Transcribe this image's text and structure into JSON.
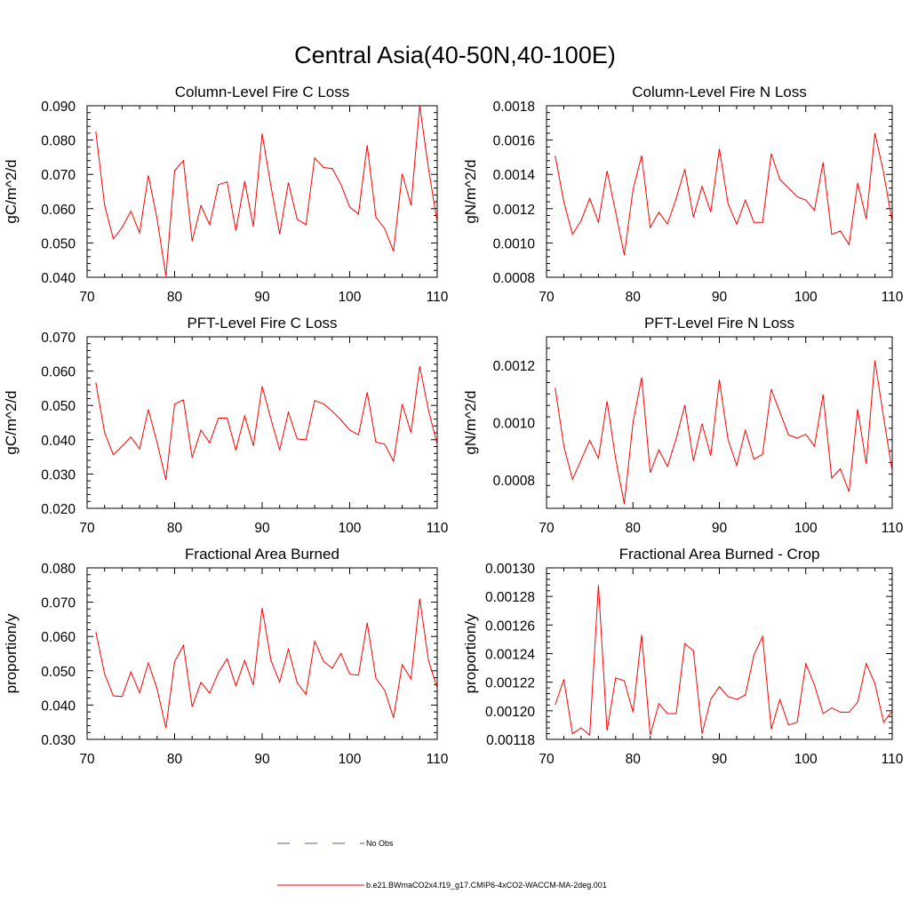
{
  "title": "Central Asia(40-50N,40-100E)",
  "chart_data": [
    {
      "type": "line",
      "title": "Column-Level Fire C Loss",
      "ylabel": "gC/m^2/d",
      "xlabel": "",
      "xlim": [
        70,
        110
      ],
      "ylim": [
        0.04,
        0.09
      ],
      "xticks": [
        "70",
        "80",
        "90",
        "100",
        "110"
      ],
      "yticks": [
        "0.040",
        "0.050",
        "0.060",
        "0.070",
        "0.080",
        "0.090"
      ],
      "x": [
        71,
        72,
        73,
        74,
        75,
        76,
        77,
        78,
        79,
        80,
        81,
        82,
        83,
        84,
        85,
        86,
        87,
        88,
        89,
        90,
        91,
        92,
        93,
        94,
        95,
        96,
        97,
        98,
        99,
        100,
        101,
        102,
        103,
        104,
        105,
        106,
        107,
        108,
        109,
        110
      ],
      "series": [
        {
          "name": "b.e21.BWmaCO2x4.f19_g17.CMIP6-4xCO2-WACCM-MA-2deg.001",
          "color": "#ff0000",
          "values": [
            0.0825,
            0.061,
            0.0512,
            0.0545,
            0.0593,
            0.0529,
            0.0697,
            0.057,
            0.0403,
            0.0711,
            0.074,
            0.0505,
            0.0609,
            0.0553,
            0.067,
            0.0678,
            0.0536,
            0.068,
            0.0548,
            0.0819,
            0.0665,
            0.0526,
            0.0676,
            0.0569,
            0.0553,
            0.0748,
            0.072,
            0.0717,
            0.0671,
            0.0605,
            0.0584,
            0.0785,
            0.0575,
            0.0542,
            0.0476,
            0.0702,
            0.061,
            0.09,
            0.0718,
            0.056
          ]
        }
      ]
    },
    {
      "type": "line",
      "title": "Column-Level Fire N Loss",
      "ylabel": "gN/m^2/d",
      "xlabel": "",
      "xlim": [
        70,
        110
      ],
      "ylim": [
        0.0008,
        0.0018
      ],
      "xticks": [
        "70",
        "80",
        "90",
        "100",
        "110"
      ],
      "yticks": [
        "0.0008",
        "0.0010",
        "0.0012",
        "0.0014",
        "0.0016",
        "0.0018"
      ],
      "x": [
        71,
        72,
        73,
        74,
        75,
        76,
        77,
        78,
        79,
        80,
        81,
        82,
        83,
        84,
        85,
        86,
        87,
        88,
        89,
        90,
        91,
        92,
        93,
        94,
        95,
        96,
        97,
        98,
        99,
        100,
        101,
        102,
        103,
        104,
        105,
        106,
        107,
        108,
        109,
        110
      ],
      "series": [
        {
          "name": "b.e21.BWmaCO2x4.f19_g17.CMIP6-4xCO2-WACCM-MA-2deg.001",
          "color": "#ff0000",
          "values": [
            0.00151,
            0.00124,
            0.00105,
            0.00113,
            0.00126,
            0.00112,
            0.00142,
            0.00118,
            0.00093,
            0.00131,
            0.00151,
            0.00109,
            0.00118,
            0.00111,
            0.00126,
            0.00143,
            0.00115,
            0.00133,
            0.00118,
            0.00155,
            0.00123,
            0.00111,
            0.00125,
            0.00112,
            0.00112,
            0.00152,
            0.00137,
            0.00132,
            0.00127,
            0.00125,
            0.00119,
            0.00147,
            0.00105,
            0.00107,
            0.00099,
            0.00135,
            0.00114,
            0.00164,
            0.00141,
            0.00112
          ]
        }
      ]
    },
    {
      "type": "line",
      "title": "PFT-Level Fire C Loss",
      "ylabel": "gC/m^2/d",
      "xlabel": "",
      "xlim": [
        70,
        110
      ],
      "ylim": [
        0.02,
        0.07
      ],
      "xticks": [
        "70",
        "80",
        "90",
        "100",
        "110"
      ],
      "yticks": [
        "0.020",
        "0.030",
        "0.040",
        "0.050",
        "0.060",
        "0.070"
      ],
      "x": [
        71,
        72,
        73,
        74,
        75,
        76,
        77,
        78,
        79,
        80,
        81,
        82,
        83,
        84,
        85,
        86,
        87,
        88,
        89,
        90,
        91,
        92,
        93,
        94,
        95,
        96,
        97,
        98,
        99,
        100,
        101,
        102,
        103,
        104,
        105,
        106,
        107,
        108,
        109,
        110
      ],
      "series": [
        {
          "name": "b.e21.BWmaCO2x4.f19_g17.CMIP6-4xCO2-WACCM-MA-2deg.001",
          "color": "#ff0000",
          "values": [
            0.0567,
            0.0421,
            0.0356,
            0.0381,
            0.0408,
            0.0373,
            0.0488,
            0.0391,
            0.0283,
            0.0504,
            0.0516,
            0.0348,
            0.0428,
            0.0391,
            0.0463,
            0.0463,
            0.037,
            0.047,
            0.0382,
            0.0556,
            0.046,
            0.037,
            0.048,
            0.0402,
            0.04,
            0.0514,
            0.0505,
            0.0483,
            0.0458,
            0.0428,
            0.0414,
            0.0538,
            0.0393,
            0.0387,
            0.0337,
            0.0504,
            0.0421,
            0.0614,
            0.0487,
            0.0386
          ]
        }
      ]
    },
    {
      "type": "line",
      "title": "PFT-Level Fire N Loss",
      "ylabel": "gN/m^2/d",
      "xlabel": "",
      "xlim": [
        70,
        110
      ],
      "ylim": [
        0.0007,
        0.0013
      ],
      "xticks": [
        "70",
        "80",
        "90",
        "100",
        "110"
      ],
      "yticks": [
        "0.0008",
        "0.0010",
        "0.0012"
      ],
      "yticks_values": [
        0.0008,
        0.001,
        0.0012
      ],
      "x": [
        71,
        72,
        73,
        74,
        75,
        76,
        77,
        78,
        79,
        80,
        81,
        82,
        83,
        84,
        85,
        86,
        87,
        88,
        89,
        90,
        91,
        92,
        93,
        94,
        95,
        96,
        97,
        98,
        99,
        100,
        101,
        102,
        103,
        104,
        105,
        106,
        107,
        108,
        109,
        110
      ],
      "series": [
        {
          "name": "b.e21.BWmaCO2x4.f19_g17.CMIP6-4xCO2-WACCM-MA-2deg.001",
          "color": "#ff0000",
          "values": [
            0.001122,
            0.000917,
            0.000801,
            0.000869,
            0.000938,
            0.000875,
            0.001075,
            0.000873,
            0.000716,
            0.001,
            0.001158,
            0.000825,
            0.000905,
            0.000846,
            0.000944,
            0.001061,
            0.000866,
            0.000996,
            0.000884,
            0.00115,
            0.000942,
            0.00085,
            0.000973,
            0.000872,
            0.000889,
            0.001117,
            0.001036,
            0.000957,
            0.000946,
            0.000959,
            0.000917,
            0.001098,
            0.000806,
            0.000838,
            0.000758,
            0.001047,
            0.000855,
            0.001217,
            0.001019,
            0.00083
          ]
        }
      ]
    },
    {
      "type": "line",
      "title": "Fractional Area Burned",
      "ylabel": "proportion/y",
      "xlabel": "",
      "xlim": [
        70,
        110
      ],
      "ylim": [
        0.03,
        0.08
      ],
      "xticks": [
        "70",
        "80",
        "90",
        "100",
        "110"
      ],
      "yticks": [
        "0.030",
        "0.040",
        "0.050",
        "0.060",
        "0.070",
        "0.080"
      ],
      "x": [
        71,
        72,
        73,
        74,
        75,
        76,
        77,
        78,
        79,
        80,
        81,
        82,
        83,
        84,
        85,
        86,
        87,
        88,
        89,
        90,
        91,
        92,
        93,
        94,
        95,
        96,
        97,
        98,
        99,
        100,
        101,
        102,
        103,
        104,
        105,
        106,
        107,
        108,
        109,
        110
      ],
      "series": [
        {
          "name": "b.e21.BWmaCO2x4.f19_g17.CMIP6-4xCO2-WACCM-MA-2deg.001",
          "color": "#ff0000",
          "values": [
            0.0614,
            0.0491,
            0.0427,
            0.0425,
            0.0497,
            0.0436,
            0.0523,
            0.0447,
            0.0333,
            0.0527,
            0.0574,
            0.0395,
            0.0466,
            0.0435,
            0.0495,
            0.0535,
            0.0456,
            0.053,
            0.0458,
            0.0683,
            0.053,
            0.0467,
            0.0563,
            0.0465,
            0.0431,
            0.0586,
            0.0528,
            0.0507,
            0.0551,
            0.049,
            0.0487,
            0.064,
            0.0478,
            0.0443,
            0.0363,
            0.0518,
            0.0476,
            0.071,
            0.0531,
            0.0449
          ]
        }
      ]
    },
    {
      "type": "line",
      "title": "Fractional Area Burned - Crop",
      "ylabel": "proportion/y",
      "xlabel": "",
      "xlim": [
        70,
        110
      ],
      "ylim": [
        0.00118,
        0.0013
      ],
      "xticks": [
        "70",
        "80",
        "90",
        "100",
        "110"
      ],
      "yticks": [
        "0.00118",
        "0.00120",
        "0.00122",
        "0.00124",
        "0.00126",
        "0.00128",
        "0.00130"
      ],
      "x": [
        71,
        72,
        73,
        74,
        75,
        76,
        77,
        78,
        79,
        80,
        81,
        82,
        83,
        84,
        85,
        86,
        87,
        88,
        89,
        90,
        91,
        92,
        93,
        94,
        95,
        96,
        97,
        98,
        99,
        100,
        101,
        102,
        103,
        104,
        105,
        106,
        107,
        108,
        109,
        110
      ],
      "series": [
        {
          "name": "b.e21.BWmaCO2x4.f19_g17.CMIP6-4xCO2-WACCM-MA-2deg.001",
          "color": "#ff0000",
          "values": [
            0.001204,
            0.001222,
            0.001184,
            0.001188,
            0.001183,
            0.001288,
            0.001186,
            0.001223,
            0.001221,
            0.001199,
            0.001253,
            0.001183,
            0.001205,
            0.001198,
            0.001198,
            0.001247,
            0.001242,
            0.001184,
            0.001208,
            0.001217,
            0.00121,
            0.001208,
            0.001211,
            0.001239,
            0.001252,
            0.001187,
            0.001208,
            0.00119,
            0.001192,
            0.001233,
            0.001218,
            0.001198,
            0.001202,
            0.001199,
            0.001199,
            0.001206,
            0.001233,
            0.001219,
            0.001192,
            0.0012
          ]
        }
      ]
    }
  ],
  "legend": [
    {
      "label": "No Obs",
      "color": "#5a5aa0",
      "style": "dashed"
    },
    {
      "label": "b.e21.BWmaCO2x4.f19_g17.CMIP6-4xCO2-WACCM-MA-2deg.001",
      "color": "#ff0000",
      "style": "solid"
    }
  ]
}
